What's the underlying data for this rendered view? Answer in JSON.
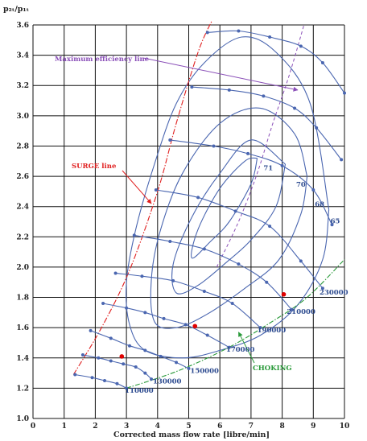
{
  "chart_data": {
    "type": "line",
    "ylabel": "p₂ₜ/p₁ₜ",
    "xlabel": "Corrected mass flow rate [libre/min]",
    "xlim": [
      0,
      10
    ],
    "ylim": [
      1.0,
      3.6
    ],
    "x_ticks": [
      "0",
      "1",
      "2",
      "3",
      "4",
      "5",
      "6",
      "7",
      "8",
      "9",
      "10"
    ],
    "y_ticks": [
      "1.0",
      "1.2",
      "1.4",
      "1.6",
      "1.8",
      "2.0",
      "2.2",
      "2.4",
      "2.6",
      "2.8",
      "3.0",
      "3.2",
      "3.4",
      "3.6"
    ],
    "grid": true,
    "colors": {
      "speed_line": "#4a66b0",
      "surge": "#e02020",
      "choke": "#2a9a3a",
      "efficiency_max": "#8a4fb8",
      "red_point": "#e00000",
      "grid": "#111111"
    },
    "speed_lines": [
      {
        "name": "110000",
        "points": [
          [
            1.35,
            1.29
          ],
          [
            1.9,
            1.27
          ],
          [
            2.3,
            1.25
          ],
          [
            2.7,
            1.23
          ],
          [
            3.0,
            1.2
          ]
        ]
      },
      {
        "name": "130000",
        "points": [
          [
            1.6,
            1.42
          ],
          [
            2.1,
            1.4
          ],
          [
            2.5,
            1.38
          ],
          [
            2.9,
            1.36
          ],
          [
            3.3,
            1.34
          ],
          [
            3.6,
            1.3
          ],
          [
            3.8,
            1.26
          ]
        ]
      },
      {
        "name": "150000",
        "points": [
          [
            1.85,
            1.58
          ],
          [
            2.5,
            1.53
          ],
          [
            3.1,
            1.48
          ],
          [
            3.6,
            1.45
          ],
          [
            4.1,
            1.41
          ],
          [
            4.6,
            1.37
          ],
          [
            5.0,
            1.33
          ]
        ]
      },
      {
        "name": "170000",
        "points": [
          [
            2.25,
            1.76
          ],
          [
            3.0,
            1.73
          ],
          [
            3.6,
            1.7
          ],
          [
            4.2,
            1.66
          ],
          [
            4.9,
            1.62
          ],
          [
            5.6,
            1.55
          ],
          [
            6.3,
            1.47
          ]
        ]
      },
      {
        "name": "190000",
        "points": [
          [
            2.65,
            1.96
          ],
          [
            3.5,
            1.94
          ],
          [
            4.5,
            1.91
          ],
          [
            5.5,
            1.84
          ],
          [
            6.4,
            1.76
          ],
          [
            7.3,
            1.6
          ]
        ]
      },
      {
        "name": "210000",
        "points": [
          [
            3.25,
            2.21
          ],
          [
            4.4,
            2.17
          ],
          [
            5.5,
            2.12
          ],
          [
            6.6,
            2.02
          ],
          [
            7.5,
            1.9
          ],
          [
            8.3,
            1.72
          ]
        ]
      },
      {
        "name": "230000",
        "points": [
          [
            3.95,
            2.51
          ],
          [
            5.3,
            2.46
          ],
          [
            6.5,
            2.37
          ],
          [
            7.6,
            2.27
          ],
          [
            8.6,
            2.04
          ],
          [
            9.3,
            1.86
          ]
        ]
      },
      {
        "name": "",
        "points": [
          [
            4.4,
            2.84
          ],
          [
            5.8,
            2.8
          ],
          [
            6.9,
            2.75
          ],
          [
            8.0,
            2.67
          ],
          [
            9.0,
            2.51
          ],
          [
            9.6,
            2.28
          ]
        ]
      },
      {
        "name": "",
        "points": [
          [
            5.1,
            3.19
          ],
          [
            6.3,
            3.17
          ],
          [
            7.4,
            3.13
          ],
          [
            8.4,
            3.05
          ],
          [
            9.1,
            2.92
          ],
          [
            9.9,
            2.71
          ]
        ]
      },
      {
        "name": "",
        "points": [
          [
            5.6,
            3.55
          ],
          [
            6.6,
            3.56
          ],
          [
            7.6,
            3.52
          ],
          [
            8.6,
            3.46
          ],
          [
            9.3,
            3.35
          ],
          [
            10.0,
            3.15
          ]
        ]
      }
    ],
    "speed_labels": [
      {
        "text": "110000",
        "x": 2.95,
        "y": 1.17
      },
      {
        "text": "130000",
        "x": 3.85,
        "y": 1.23
      },
      {
        "text": "150000",
        "x": 5.05,
        "y": 1.3
      },
      {
        "text": "170000",
        "x": 6.2,
        "y": 1.44
      },
      {
        "text": "190000",
        "x": 7.2,
        "y": 1.57
      },
      {
        "text": "210000",
        "x": 8.15,
        "y": 1.69
      },
      {
        "text": "230000",
        "x": 9.2,
        "y": 1.82
      }
    ],
    "efficiency_islands": [
      {
        "name": "71",
        "label": {
          "x": 7.4,
          "y": 2.64
        },
        "points": [
          [
            7.2,
            2.72
          ],
          [
            7.0,
            2.55
          ],
          [
            6.3,
            2.3
          ],
          [
            5.7,
            2.17
          ],
          [
            5.1,
            2.06
          ],
          [
            5.3,
            2.25
          ],
          [
            6.0,
            2.52
          ],
          [
            6.8,
            2.7
          ],
          [
            7.2,
            2.72
          ]
        ]
      },
      {
        "name": "70",
        "label": {
          "x": 8.45,
          "y": 2.53
        },
        "points": [
          [
            8.1,
            2.68
          ],
          [
            7.8,
            2.4
          ],
          [
            7.0,
            2.18
          ],
          [
            6.2,
            2.03
          ],
          [
            5.3,
            1.88
          ],
          [
            4.6,
            1.83
          ],
          [
            4.5,
            2.02
          ],
          [
            5.1,
            2.33
          ],
          [
            6.0,
            2.62
          ],
          [
            7.0,
            2.84
          ],
          [
            8.1,
            2.68
          ]
        ]
      },
      {
        "name": "68",
        "label": {
          "x": 9.05,
          "y": 2.4
        },
        "points": [
          [
            8.8,
            2.6
          ],
          [
            8.6,
            2.35
          ],
          [
            7.9,
            2.05
          ],
          [
            6.8,
            1.86
          ],
          [
            5.6,
            1.69
          ],
          [
            4.6,
            1.6
          ],
          [
            3.9,
            1.64
          ],
          [
            3.8,
            1.92
          ],
          [
            4.1,
            2.25
          ],
          [
            4.8,
            2.62
          ],
          [
            6.0,
            2.95
          ],
          [
            7.3,
            3.05
          ],
          [
            8.4,
            2.88
          ],
          [
            8.8,
            2.6
          ]
        ]
      },
      {
        "name": "65",
        "label": {
          "x": 9.55,
          "y": 2.29
        },
        "points": [
          [
            9.5,
            2.38
          ],
          [
            9.3,
            2.05
          ],
          [
            8.5,
            1.75
          ],
          [
            7.3,
            1.55
          ],
          [
            6.0,
            1.45
          ],
          [
            4.8,
            1.4
          ],
          [
            3.6,
            1.45
          ],
          [
            3.1,
            1.62
          ],
          [
            3.0,
            1.9
          ],
          [
            3.3,
            2.25
          ],
          [
            3.9,
            2.68
          ],
          [
            4.6,
            3.08
          ],
          [
            5.5,
            3.35
          ],
          [
            6.7,
            3.52
          ],
          [
            7.8,
            3.42
          ],
          [
            8.9,
            3.08
          ],
          [
            9.5,
            2.38
          ]
        ]
      }
    ],
    "surge_line": {
      "label": "SURGE line",
      "points": [
        [
          1.3,
          1.29
        ],
        [
          2.2,
          1.6
        ],
        [
          3.1,
          1.98
        ],
        [
          4.0,
          2.5
        ],
        [
          4.6,
          2.95
        ],
        [
          5.3,
          3.42
        ],
        [
          5.75,
          3.63
        ]
      ]
    },
    "choke_line": {
      "label": "CHOKING",
      "points": [
        [
          3.0,
          1.2
        ],
        [
          4.6,
          1.31
        ],
        [
          6.2,
          1.46
        ],
        [
          7.6,
          1.63
        ],
        [
          8.8,
          1.8
        ],
        [
          10.0,
          2.05
        ]
      ]
    },
    "max_efficiency_line": {
      "label": "Maximum efficiency line",
      "points": [
        [
          5.9,
          2.0
        ],
        [
          6.6,
          2.3
        ],
        [
          7.2,
          2.62
        ],
        [
          7.7,
          2.95
        ],
        [
          8.2,
          3.25
        ],
        [
          8.7,
          3.6
        ]
      ]
    },
    "red_points": [
      [
        2.85,
        1.41
      ],
      [
        5.2,
        1.61
      ],
      [
        8.05,
        1.82
      ]
    ]
  }
}
